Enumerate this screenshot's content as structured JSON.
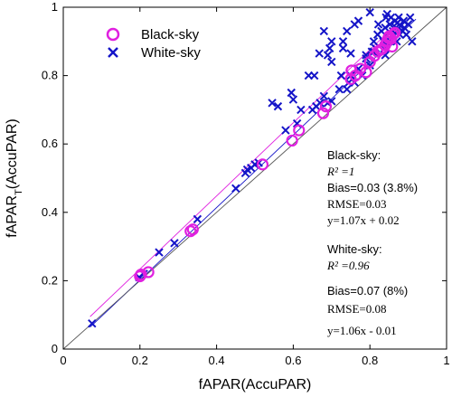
{
  "chart_data": {
    "type": "scatter",
    "xlabel": "fAPAR(AccuPAR)",
    "ylabel_main": "fAPAR",
    "ylabel_sub": "T",
    "ylabel_tail": "(AccuPAR)",
    "xlim": [
      0,
      1
    ],
    "ylim": [
      0,
      1
    ],
    "x_ticks": [
      "0",
      "0.2",
      "0.4",
      "0.6",
      "0.8",
      "1"
    ],
    "y_ticks": [
      "0",
      "0.2",
      "0.4",
      "0.6",
      "0.8",
      "1"
    ],
    "grid": false,
    "legend": {
      "placement": "top-left",
      "entries": [
        "Black-sky",
        "White-sky"
      ]
    },
    "colors": {
      "black_sky": "#e020e0",
      "white_sky": "#1414c8",
      "black_sky_fit": "#e020e0",
      "white_sky_fit": "#1414c8",
      "one_to_one": "#555555"
    },
    "series": [
      {
        "name": "Black-sky",
        "marker": "circle",
        "points": [
          [
            0.2,
            0.213
          ],
          [
            0.203,
            0.218
          ],
          [
            0.222,
            0.225
          ],
          [
            0.332,
            0.345
          ],
          [
            0.338,
            0.35
          ],
          [
            0.52,
            0.54
          ],
          [
            0.597,
            0.61
          ],
          [
            0.615,
            0.64
          ],
          [
            0.678,
            0.69
          ],
          [
            0.685,
            0.71
          ],
          [
            0.75,
            0.79
          ],
          [
            0.752,
            0.815
          ],
          [
            0.762,
            0.8
          ],
          [
            0.775,
            0.82
          ],
          [
            0.79,
            0.81
          ],
          [
            0.8,
            0.84
          ],
          [
            0.812,
            0.858
          ],
          [
            0.82,
            0.87
          ],
          [
            0.827,
            0.875
          ],
          [
            0.832,
            0.878
          ],
          [
            0.84,
            0.89
          ],
          [
            0.845,
            0.9
          ],
          [
            0.848,
            0.91
          ],
          [
            0.85,
            0.915
          ],
          [
            0.855,
            0.908
          ],
          [
            0.86,
            0.92
          ],
          [
            0.865,
            0.925
          ],
          [
            0.858,
            0.885
          ]
        ]
      },
      {
        "name": "White-sky",
        "marker": "x",
        "points": [
          [
            0.075,
            0.075
          ],
          [
            0.198,
            0.21
          ],
          [
            0.21,
            0.22
          ],
          [
            0.25,
            0.283
          ],
          [
            0.29,
            0.31
          ],
          [
            0.35,
            0.38
          ],
          [
            0.45,
            0.47
          ],
          [
            0.475,
            0.515
          ],
          [
            0.48,
            0.525
          ],
          [
            0.49,
            0.53
          ],
          [
            0.5,
            0.54
          ],
          [
            0.51,
            0.545
          ],
          [
            0.58,
            0.64
          ],
          [
            0.61,
            0.66
          ],
          [
            0.62,
            0.7
          ],
          [
            0.65,
            0.7
          ],
          [
            0.66,
            0.71
          ],
          [
            0.67,
            0.72
          ],
          [
            0.68,
            0.74
          ],
          [
            0.69,
            0.72
          ],
          [
            0.7,
            0.725
          ],
          [
            0.72,
            0.76
          ],
          [
            0.725,
            0.8
          ],
          [
            0.74,
            0.76
          ],
          [
            0.745,
            0.78
          ],
          [
            0.75,
            0.8
          ],
          [
            0.76,
            0.78
          ],
          [
            0.77,
            0.82
          ],
          [
            0.78,
            0.8
          ],
          [
            0.79,
            0.85
          ],
          [
            0.8,
            0.83
          ],
          [
            0.805,
            0.87
          ],
          [
            0.81,
            0.9
          ],
          [
            0.815,
            0.88
          ],
          [
            0.82,
            0.92
          ],
          [
            0.822,
            0.95
          ],
          [
            0.83,
            0.93
          ],
          [
            0.835,
            0.9
          ],
          [
            0.838,
            0.88
          ],
          [
            0.84,
            0.94
          ],
          [
            0.842,
            0.97
          ],
          [
            0.845,
            0.98
          ],
          [
            0.85,
            0.91
          ],
          [
            0.852,
            0.95
          ],
          [
            0.855,
            0.97
          ],
          [
            0.86,
            0.93
          ],
          [
            0.862,
            0.92
          ],
          [
            0.865,
            0.96
          ],
          [
            0.868,
            0.94
          ],
          [
            0.87,
            0.9
          ],
          [
            0.872,
            0.955
          ],
          [
            0.875,
            0.97
          ],
          [
            0.878,
            0.92
          ],
          [
            0.88,
            0.945
          ],
          [
            0.885,
            0.93
          ],
          [
            0.888,
            0.96
          ],
          [
            0.89,
            0.94
          ],
          [
            0.895,
            0.92
          ],
          [
            0.9,
            0.95
          ],
          [
            0.905,
            0.97
          ],
          [
            0.91,
            0.9
          ],
          [
            0.77,
            0.96
          ],
          [
            0.8,
            0.985
          ],
          [
            0.76,
            0.95
          ],
          [
            0.74,
            0.93
          ],
          [
            0.73,
            0.9
          ],
          [
            0.7,
            0.9
          ],
          [
            0.695,
            0.88
          ],
          [
            0.668,
            0.865
          ],
          [
            0.655,
            0.8
          ],
          [
            0.64,
            0.8
          ],
          [
            0.68,
            0.93
          ],
          [
            0.6,
            0.73
          ],
          [
            0.595,
            0.75
          ],
          [
            0.56,
            0.71
          ],
          [
            0.545,
            0.72
          ],
          [
            0.7,
            0.84
          ],
          [
            0.69,
            0.86
          ],
          [
            0.73,
            0.88
          ],
          [
            0.75,
            0.865
          ],
          [
            0.79,
            0.86
          ],
          [
            0.81,
            0.87
          ],
          [
            0.84,
            0.86
          ],
          [
            0.85,
            0.9
          ]
        ]
      }
    ],
    "fit_lines": [
      {
        "name": "Black-sky fit",
        "slope": 1.07,
        "intercept": 0.02,
        "x_range": [
          0.07,
          0.88
        ]
      },
      {
        "name": "White-sky fit",
        "slope": 1.06,
        "intercept": -0.01,
        "x_range": [
          0.07,
          0.92
        ]
      },
      {
        "name": "1:1 line",
        "slope": 1,
        "intercept": 0,
        "x_range": [
          0,
          1
        ]
      }
    ],
    "annotations": {
      "black_title": "Black-sky:",
      "black_r2": "R² =1",
      "black_bias": "Bias=0.03 (3.8%)",
      "black_rmse": "RMSE=0.03",
      "black_eq": "y=1.07x + 0.02",
      "white_title": "White-sky:",
      "white_r2": "R² =0.96",
      "white_bias": "Bias=0.07 (8%)",
      "white_rmse": "RMSE=0.08",
      "white_eq": "y=1.06x - 0.01"
    }
  }
}
